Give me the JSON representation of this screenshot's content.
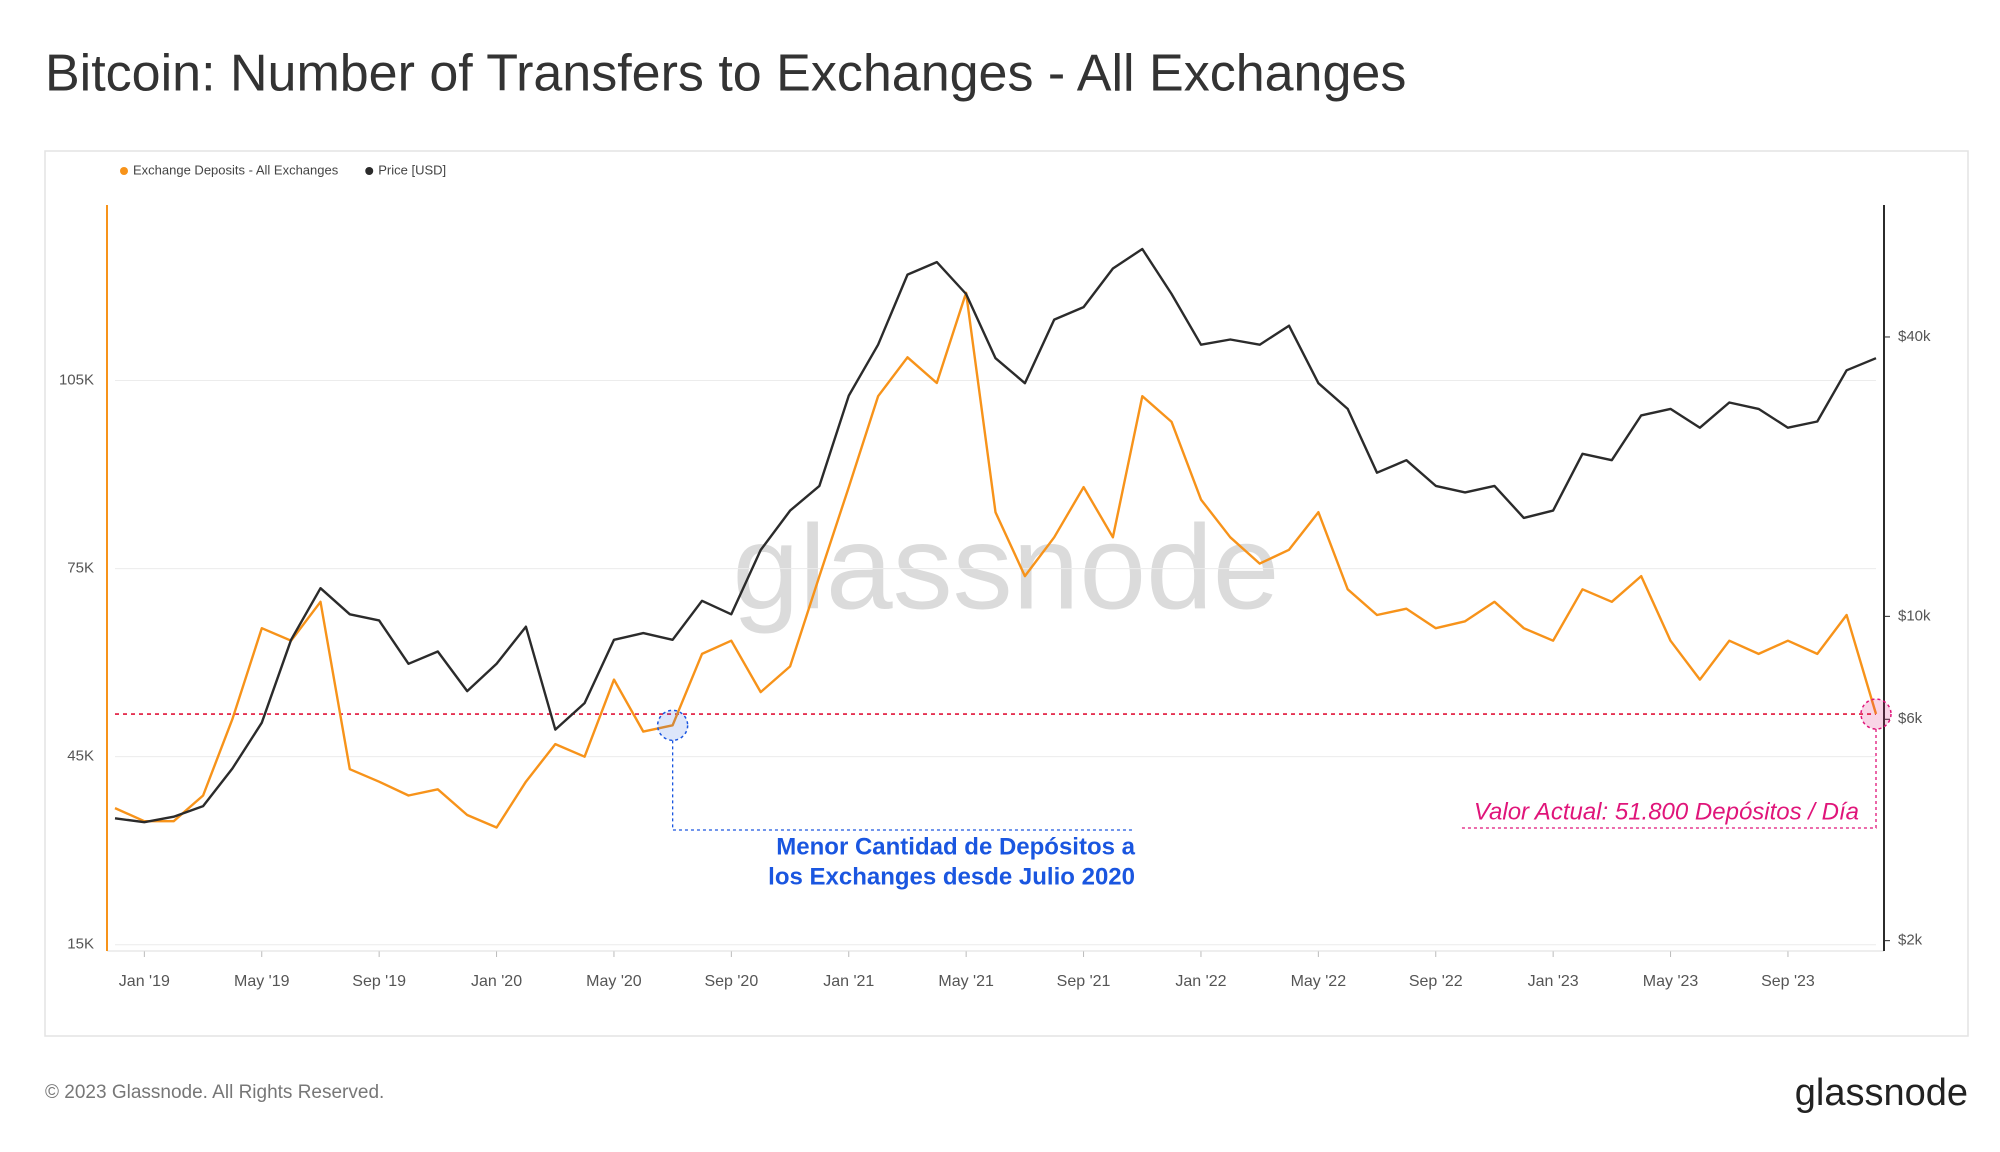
{
  "chart_data": {
    "type": "line",
    "title": "Bitcoin: Number of Transfers to Exchanges - All Exchanges",
    "footer": "© 2023 Glassnode. All Rights Reserved.",
    "logo": "glassnode",
    "watermark": "glassnode",
    "x": [
      "2018-12",
      "2019-01",
      "2019-02",
      "2019-03",
      "2019-04",
      "2019-05",
      "2019-06",
      "2019-07",
      "2019-08",
      "2019-09",
      "2019-10",
      "2019-11",
      "2019-12",
      "2020-01",
      "2020-02",
      "2020-03",
      "2020-04",
      "2020-05",
      "2020-06",
      "2020-07",
      "2020-08",
      "2020-09",
      "2020-10",
      "2020-11",
      "2020-12",
      "2021-01",
      "2021-02",
      "2021-03",
      "2021-04",
      "2021-05",
      "2021-06",
      "2021-07",
      "2021-08",
      "2021-09",
      "2021-10",
      "2021-11",
      "2021-12",
      "2022-01",
      "2022-02",
      "2022-03",
      "2022-04",
      "2022-05",
      "2022-06",
      "2022-07",
      "2022-08",
      "2022-09",
      "2022-10",
      "2022-11",
      "2022-12",
      "2023-01",
      "2023-02",
      "2023-03",
      "2023-04",
      "2023-05",
      "2023-06",
      "2023-07",
      "2023-08",
      "2023-09",
      "2023-10",
      "2023-11",
      "2023-12"
    ],
    "xlim": [
      "2018-12",
      "2023-12"
    ],
    "xticks": [
      {
        "value": "2019-01",
        "label": "Jan '19"
      },
      {
        "value": "2019-05",
        "label": "May '19"
      },
      {
        "value": "2019-09",
        "label": "Sep '19"
      },
      {
        "value": "2020-01",
        "label": "Jan '20"
      },
      {
        "value": "2020-05",
        "label": "May '20"
      },
      {
        "value": "2020-09",
        "label": "Sep '20"
      },
      {
        "value": "2021-01",
        "label": "Jan '21"
      },
      {
        "value": "2021-05",
        "label": "May '21"
      },
      {
        "value": "2021-09",
        "label": "Sep '21"
      },
      {
        "value": "2022-01",
        "label": "Jan '22"
      },
      {
        "value": "2022-05",
        "label": "May '22"
      },
      {
        "value": "2022-09",
        "label": "Sep '22"
      },
      {
        "value": "2023-01",
        "label": "Jan '23"
      },
      {
        "value": "2023-05",
        "label": "May '23"
      },
      {
        "value": "2023-09",
        "label": "Sep '23"
      }
    ],
    "ylim": [
      14000,
      133000
    ],
    "yticks": [
      {
        "value": 15000,
        "label": "15K"
      },
      {
        "value": 45000,
        "label": "45K"
      },
      {
        "value": 75000,
        "label": "75K"
      },
      {
        "value": 105000,
        "label": "105K"
      }
    ],
    "y2lim": [
      1900,
      77000
    ],
    "y2log": true,
    "y2ticks": [
      {
        "value": 2000,
        "label": "$2k"
      },
      {
        "value": 6000,
        "label": "$6k"
      },
      {
        "value": 10000,
        "label": "$10k"
      },
      {
        "value": 40000,
        "label": "$40k"
      }
    ],
    "grid": true,
    "legend": "top-left",
    "series": [
      {
        "name": "Exchange Deposits - All Exchanges",
        "color": "#f7931a",
        "values": [
          36800,
          34700,
          34700,
          38800,
          51000,
          65500,
          63500,
          69700,
          43000,
          41000,
          38800,
          39800,
          35700,
          33700,
          41000,
          47000,
          45000,
          57300,
          49000,
          50000,
          61400,
          63500,
          55300,
          59400,
          73800,
          88000,
          102500,
          108700,
          104600,
          119000,
          84000,
          73800,
          80000,
          88000,
          80000,
          102500,
          98400,
          86000,
          80000,
          75800,
          78000,
          84000,
          71700,
          67600,
          68600,
          65500,
          66600,
          69700,
          65500,
          63500,
          71700,
          69700,
          73800,
          63500,
          57300,
          63500,
          61400,
          63500,
          61400,
          67600,
          51800
        ]
      },
      {
        "name": "Price [USD]",
        "color": "#2b2b2b",
        "axis": "y2",
        "values": [
          3670,
          3600,
          3700,
          3900,
          4700,
          5900,
          8900,
          11500,
          10100,
          9800,
          7900,
          8400,
          6900,
          7900,
          9500,
          5700,
          6500,
          8900,
          9200,
          8900,
          10800,
          10100,
          13900,
          16900,
          19100,
          29900,
          38500,
          54500,
          58000,
          49500,
          36000,
          31800,
          43600,
          46400,
          56200,
          61900,
          49500,
          38500,
          39500,
          38500,
          42300,
          31800,
          28000,
          20400,
          21700,
          19100,
          18500,
          19100,
          16300,
          16900,
          22400,
          21700,
          27100,
          28000,
          25500,
          28900,
          28000,
          25500,
          26300,
          33900,
          36000
        ]
      }
    ],
    "reference_line": 51800,
    "annotations": [
      {
        "x": "2020-07",
        "text": [
          "Menor Cantidad de Depósitos a",
          "los Exchanges desde Julio 2020"
        ],
        "color": "#1a56e0"
      },
      {
        "x": "2023-12",
        "text": [
          "Valor Actual: 51.800 Depósitos / Día"
        ],
        "color": "#e0157a"
      }
    ]
  }
}
